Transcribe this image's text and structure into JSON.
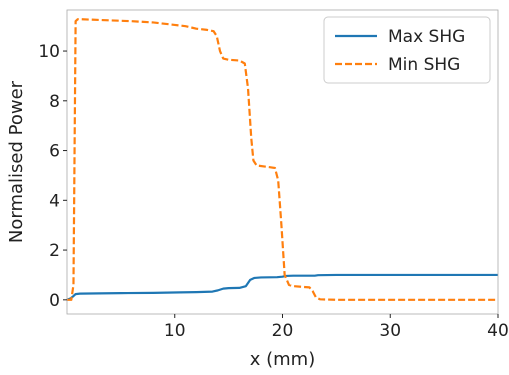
{
  "chart_data": {
    "type": "line",
    "title": "",
    "xlabel": "x (mm)",
    "ylabel": "Normalised Power",
    "xlim": [
      0,
      40
    ],
    "ylim": [
      -0.57,
      11.65
    ],
    "xticks": [
      10,
      20,
      30,
      40
    ],
    "xtick_labels": [
      "10",
      "20",
      "30",
      "40"
    ],
    "yticks": [
      0,
      2,
      4,
      6,
      8,
      10
    ],
    "ytick_labels": [
      "0",
      "2",
      "4",
      "6",
      "8",
      "10"
    ],
    "grid": false,
    "legend": {
      "placement": "top-right"
    },
    "series": [
      {
        "name": "Max SHG",
        "color": "#1f77b4",
        "dash": "solid",
        "x": [
          0.0,
          0.3,
          0.6,
          0.8,
          1.2,
          3,
          5,
          8,
          10.5,
          12,
          13.5,
          14.0,
          14.5,
          15,
          16,
          16.6,
          17.0,
          17.4,
          18,
          19.5,
          20.0,
          20.3,
          21,
          23,
          23.3,
          25,
          30,
          35,
          40
        ],
        "y": [
          0.0,
          0.05,
          0.15,
          0.23,
          0.25,
          0.26,
          0.27,
          0.28,
          0.3,
          0.31,
          0.33,
          0.38,
          0.45,
          0.47,
          0.48,
          0.55,
          0.8,
          0.88,
          0.9,
          0.91,
          0.93,
          0.96,
          0.97,
          0.97,
          0.99,
          1.0,
          1.0,
          1.0,
          1.0
        ]
      },
      {
        "name": "Min SHG",
        "color": "#ff7f0e",
        "dash": "dashed",
        "x": [
          0.0,
          0.4,
          0.6,
          0.8,
          1.0,
          1.2,
          3,
          6,
          8,
          10,
          11,
          12,
          13.0,
          13.6,
          13.9,
          14.2,
          14.5,
          15,
          16,
          16.5,
          16.8,
          17.1,
          17.3,
          17.6,
          18.5,
          19.3,
          19.6,
          19.9,
          20.2,
          20.6,
          21,
          22.5,
          22.8,
          23.1,
          23.5,
          25,
          30,
          35,
          40
        ],
        "y": [
          0.0,
          0.0,
          0.6,
          11.2,
          11.28,
          11.28,
          11.25,
          11.2,
          11.15,
          11.05,
          11.0,
          10.9,
          10.85,
          10.8,
          10.6,
          10.0,
          9.7,
          9.65,
          9.62,
          9.5,
          8.5,
          6.5,
          5.6,
          5.4,
          5.35,
          5.3,
          4.8,
          3.0,
          1.0,
          0.6,
          0.55,
          0.5,
          0.35,
          0.1,
          0.02,
          0.0,
          0.0,
          0.0,
          0.0
        ]
      }
    ]
  }
}
